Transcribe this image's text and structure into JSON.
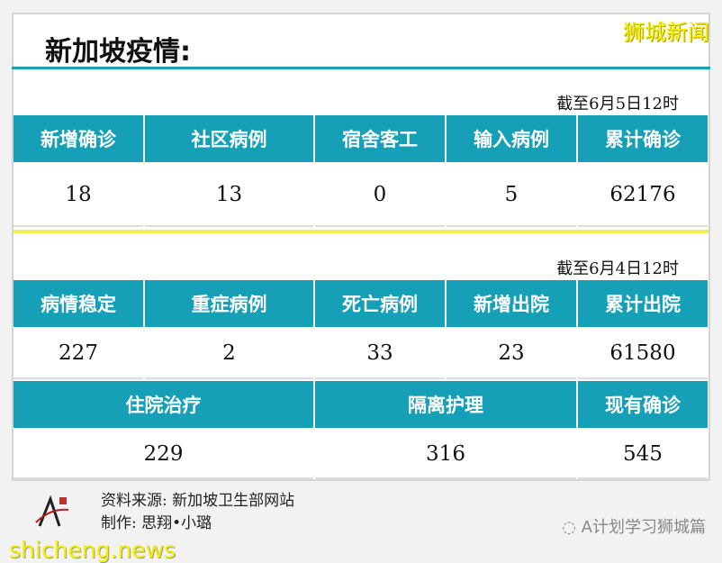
{
  "title": "新加坡疫情:",
  "brand": "狮城新闻",
  "section1": {
    "date": "截至6月5日12时",
    "headers": [
      "新增确诊",
      "社区病例",
      "宿舍客工",
      "输入病例",
      "累计确诊"
    ],
    "values": [
      "18",
      "13",
      "0",
      "5",
      "62176"
    ]
  },
  "section2": {
    "date": "截至6月4日12时",
    "headers": [
      "病情稳定",
      "重症病例",
      "死亡病例",
      "新增出院",
      "累计出院"
    ],
    "values": [
      "227",
      "2",
      "33",
      "23",
      "61580"
    ]
  },
  "section3": {
    "headers": [
      "住院治疗",
      "隔离护理",
      "现有确诊"
    ],
    "values": [
      "229",
      "316",
      "545"
    ]
  },
  "footer": {
    "source": "资料来源: 新加坡卫生部网站",
    "author": "制作: 思翔•小璐",
    "wechat": "A计划学习狮城篇",
    "logo_text": "学习狮城篇",
    "watermark": "shicheng.news"
  },
  "colors": {
    "header": "#16a0b8",
    "divider": "#f2ee50",
    "brand": "#f5f000"
  }
}
